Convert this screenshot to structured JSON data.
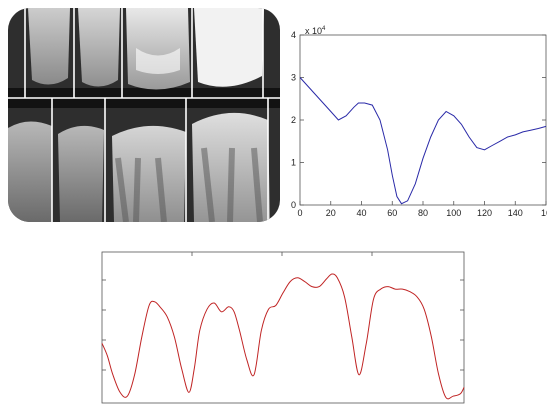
{
  "figure": {
    "image_label": "dental bitewing radiograph with vertical separation lines"
  },
  "chart_data": [
    {
      "type": "line",
      "title": "",
      "xlabel": "",
      "ylabel": "",
      "y_exponent_label": "x 10",
      "y_exponent_power": "4",
      "xlim": [
        0,
        160
      ],
      "ylim": [
        0,
        4
      ],
      "xticks": [
        "0",
        "20",
        "40",
        "60",
        "80",
        "100",
        "120",
        "140",
        "16"
      ],
      "yticks": [
        "0",
        "1",
        "2",
        "3",
        "4"
      ],
      "grid": false,
      "color": "#2a2aa8",
      "series": [
        {
          "x": [
            0,
            5,
            10,
            15,
            20,
            25,
            30,
            35,
            38,
            42,
            47,
            52,
            57,
            60,
            63,
            66,
            70,
            75,
            80,
            85,
            90,
            95,
            100,
            105,
            110,
            115,
            120,
            125,
            130,
            135,
            140,
            145,
            150,
            155,
            160
          ],
          "y": [
            3.0,
            2.8,
            2.6,
            2.4,
            2.2,
            2.0,
            2.1,
            2.3,
            2.4,
            2.4,
            2.35,
            2.0,
            1.3,
            0.7,
            0.2,
            0.03,
            0.1,
            0.5,
            1.1,
            1.6,
            2.0,
            2.2,
            2.1,
            1.9,
            1.6,
            1.35,
            1.3,
            1.4,
            1.5,
            1.6,
            1.65,
            1.72,
            1.76,
            1.8,
            1.85
          ]
        }
      ]
    },
    {
      "type": "line",
      "title": "",
      "xlabel": "",
      "ylabel": "",
      "xlim": [
        0,
        100
      ],
      "ylim": [
        0,
        1
      ],
      "grid": false,
      "axes_ticks": false,
      "color": "#c02424",
      "series": [
        {
          "x": [
            0,
            1.5,
            3,
            5,
            7,
            9,
            11,
            13,
            14.5,
            16,
            18,
            20,
            22,
            24,
            25.5,
            27,
            29,
            31,
            33,
            35,
            36.5,
            38,
            40,
            42,
            44,
            46,
            48,
            50,
            52,
            54,
            56,
            58,
            60,
            62,
            63.5,
            65,
            67,
            69,
            71,
            73,
            75,
            77,
            79,
            81,
            83,
            85,
            87,
            89,
            91,
            93,
            95,
            97,
            99,
            100
          ],
          "y": [
            0.45,
            0.35,
            0.2,
            0.06,
            0.03,
            0.2,
            0.5,
            0.75,
            0.78,
            0.74,
            0.66,
            0.5,
            0.25,
            0.06,
            0.25,
            0.55,
            0.72,
            0.77,
            0.7,
            0.74,
            0.7,
            0.55,
            0.32,
            0.2,
            0.55,
            0.72,
            0.75,
            0.85,
            0.94,
            0.97,
            0.94,
            0.9,
            0.9,
            0.96,
            1.0,
            0.97,
            0.82,
            0.5,
            0.2,
            0.45,
            0.8,
            0.88,
            0.9,
            0.88,
            0.88,
            0.86,
            0.82,
            0.72,
            0.5,
            0.2,
            0.02,
            0.03,
            0.05,
            0.1
          ]
        }
      ]
    }
  ]
}
